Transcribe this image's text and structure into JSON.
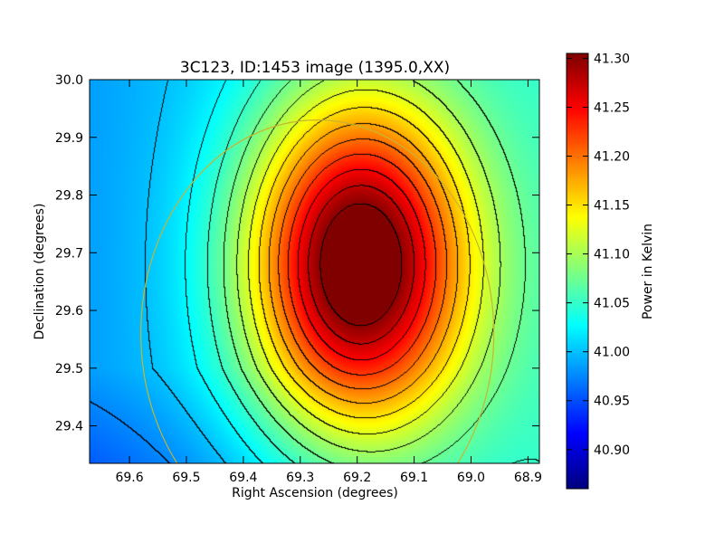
{
  "chart_data": {
    "type": "heatmap",
    "title": "3C123, ID:1453 image (1395.0,XX)",
    "xlabel": "Right Ascension (degrees)",
    "ylabel": "Declination (degrees)",
    "xlim": [
      69.67,
      68.88
    ],
    "ylim": [
      29.335,
      30.0
    ],
    "x_reversed": true,
    "x_ticks": [
      69.6,
      69.5,
      69.4,
      69.3,
      69.2,
      69.1,
      69.0,
      68.9
    ],
    "x_tick_labels": [
      "69.6",
      "69.5",
      "69.4",
      "69.3",
      "69.2",
      "69.1",
      "69.0",
      "68.9"
    ],
    "y_ticks": [
      29.4,
      29.5,
      29.6,
      29.7,
      29.8,
      29.9,
      30.0
    ],
    "y_tick_labels": [
      "29.4",
      "29.5",
      "29.6",
      "29.7",
      "29.8",
      "29.9",
      "30.0"
    ],
    "colormap": "jet",
    "colorbar": {
      "label": "Power in Kelvin",
      "range": [
        40.86,
        41.305
      ],
      "ticks": [
        40.9,
        40.95,
        41.0,
        41.05,
        41.1,
        41.15,
        41.2,
        41.25,
        41.3
      ],
      "tick_labels": [
        "40.90",
        "40.95",
        "41.00",
        "41.05",
        "41.10",
        "41.15",
        "41.20",
        "41.25",
        "41.30"
      ]
    },
    "peak": {
      "ra": 69.21,
      "dec": 29.68,
      "value": 41.3
    },
    "contour_color": "#000000",
    "circle": {
      "ra_center": 69.27,
      "dec_center": 29.56,
      "radius_ra": 0.31,
      "radius_dec": 0.37,
      "color": "#c8b432"
    }
  }
}
